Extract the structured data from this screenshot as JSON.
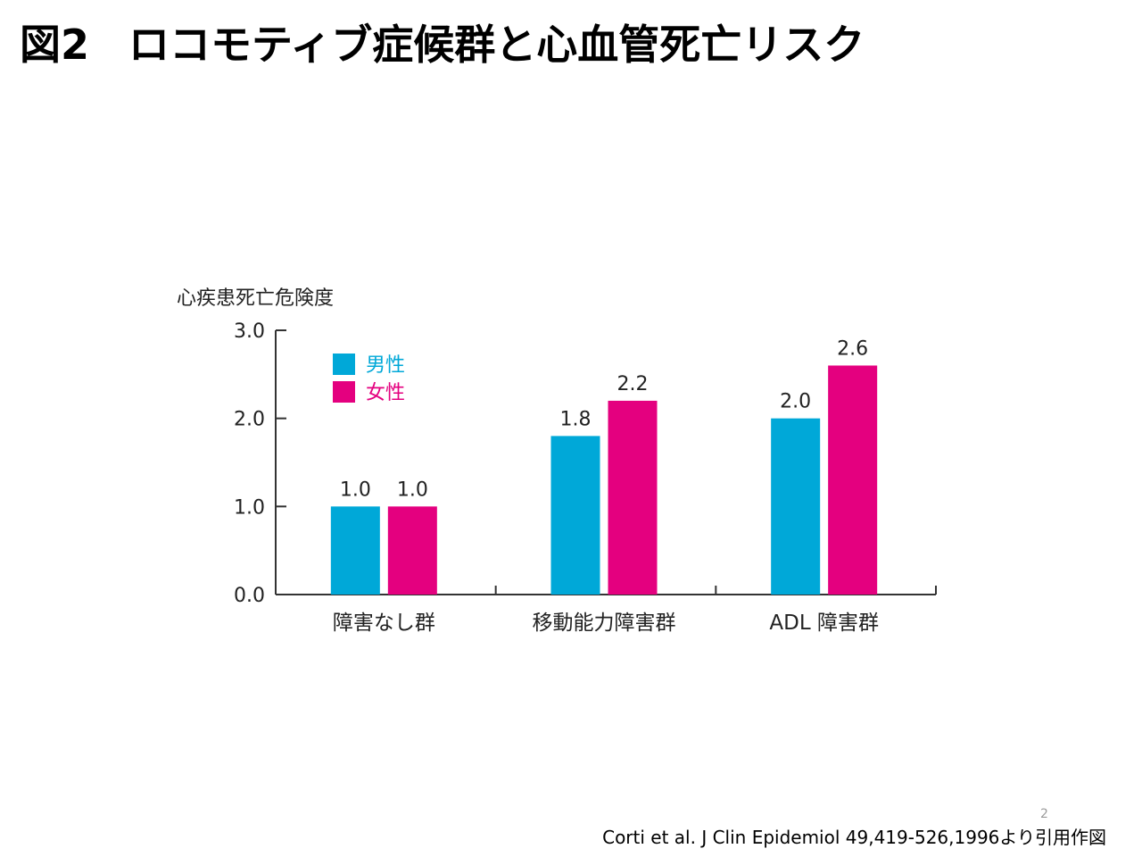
{
  "slide": {
    "title_prefix": "図2",
    "title_text": "ロコモティブ症候群と心血管死亡リスク",
    "page_number": "2",
    "citation": "Corti et al. J Clin Epidemiol 49,419-526,1996より引用作図"
  },
  "chart_data": {
    "type": "bar",
    "title": "",
    "ylabel": "心疾患死亡危険度",
    "xlabel": "",
    "categories": [
      "障害なし群",
      "移動能力障害群",
      "ADL 障害群"
    ],
    "series": [
      {
        "name": "男性",
        "values": [
          1.0,
          1.8,
          2.0
        ],
        "labels": [
          "1.0",
          "1.8",
          "2.0"
        ],
        "color": "#00a8d8"
      },
      {
        "name": "女性",
        "values": [
          1.0,
          2.2,
          2.6
        ],
        "labels": [
          "1.0",
          "2.2",
          "2.6"
        ],
        "color": "#e4007f"
      }
    ],
    "ylim": [
      0,
      3.0
    ],
    "yticks": [
      "0.0",
      "1.0",
      "2.0",
      "3.0"
    ],
    "grid": false,
    "legend_position": "top-left"
  }
}
